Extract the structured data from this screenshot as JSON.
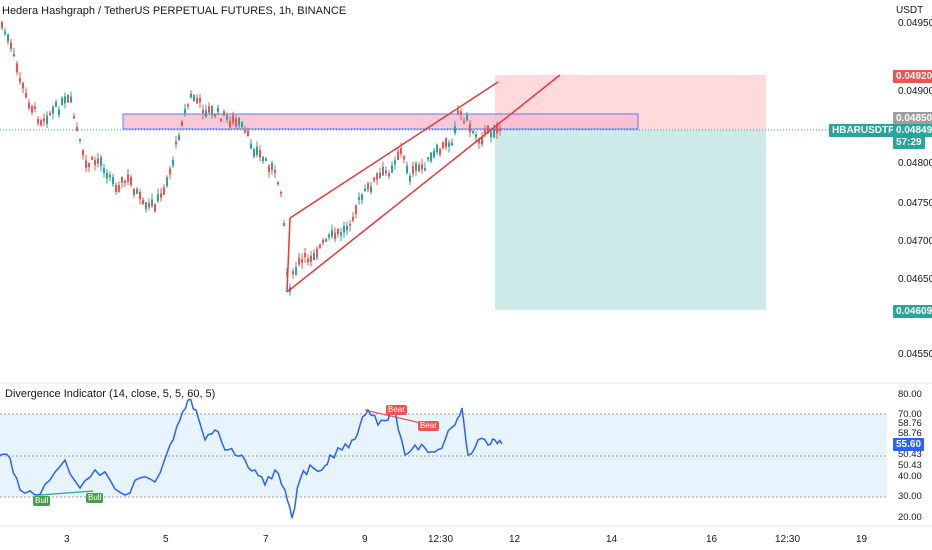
{
  "header": {
    "title": "Hedera Hashgraph / TetherUS PERPETUAL FUTURES, 1h, BINANCE",
    "currency": "USDT"
  },
  "price_axis": {
    "ticks": [
      "0.04950",
      "0.04900",
      "0.04800",
      "0.04750",
      "0.04700",
      "0.04650",
      "0.04550"
    ]
  },
  "price_tags": {
    "target": "0.04920",
    "zone_top": "0.04850",
    "symbol": "HBARUSDTPERP",
    "last_price": "0.04849",
    "countdown": "57:29",
    "stop": "0.04609"
  },
  "indicator": {
    "title": "Divergence Indicator (14, close, 5, 5, 60, 5)",
    "ticks": [
      "80.00",
      "70.00",
      "58.76",
      "58.76",
      "50.43",
      "50.43",
      "40.00",
      "30.00",
      "20.00"
    ],
    "value": "55.60",
    "labels": {
      "bull1": "Bull",
      "bull2": "Bull",
      "bear1": "Bear",
      "bear2": "Bear"
    }
  },
  "time_axis": [
    "3",
    "5",
    "7",
    "9",
    "12:30",
    "12",
    "14",
    "16",
    "12:30",
    "19"
  ],
  "colors": {
    "up": "#26a69a",
    "down": "#ef5350",
    "rsi": "#2962ff",
    "channel": "#e53935",
    "short_target": "#b2dfdb",
    "short_stop": "#ffcdd2"
  }
}
